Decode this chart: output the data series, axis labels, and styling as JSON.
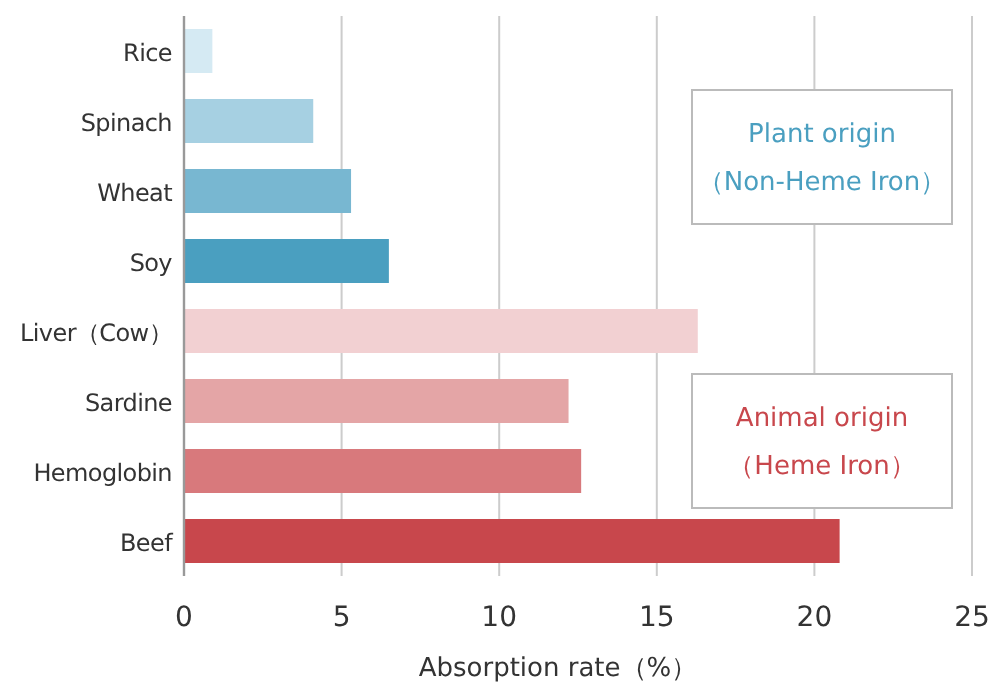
{
  "chart_data": {
    "type": "bar",
    "orientation": "horizontal",
    "xlabel": "Absorption rate（%）",
    "categories": [
      "Rice",
      "Spinach",
      "Wheat",
      "Soy",
      "Liver（Cow）",
      "Sardine",
      "Hemoglobin",
      "Beef"
    ],
    "values": [
      0.9,
      4.1,
      5.3,
      6.5,
      16.3,
      12.2,
      12.6,
      20.8
    ],
    "colors": [
      "#d5eaf3",
      "#a6d0e2",
      "#78b7d1",
      "#4a9fc0",
      "#f2d0d2",
      "#e4a5a6",
      "#d8797c",
      "#c8474c"
    ],
    "xlim": [
      0,
      25
    ],
    "xticks": [
      0,
      5,
      10,
      15,
      20,
      25
    ],
    "grid": "x",
    "annotations": [
      "Plant origin",
      "（Non-Heme Iron）",
      "Animal origin",
      "（Heme Iron）"
    ]
  }
}
